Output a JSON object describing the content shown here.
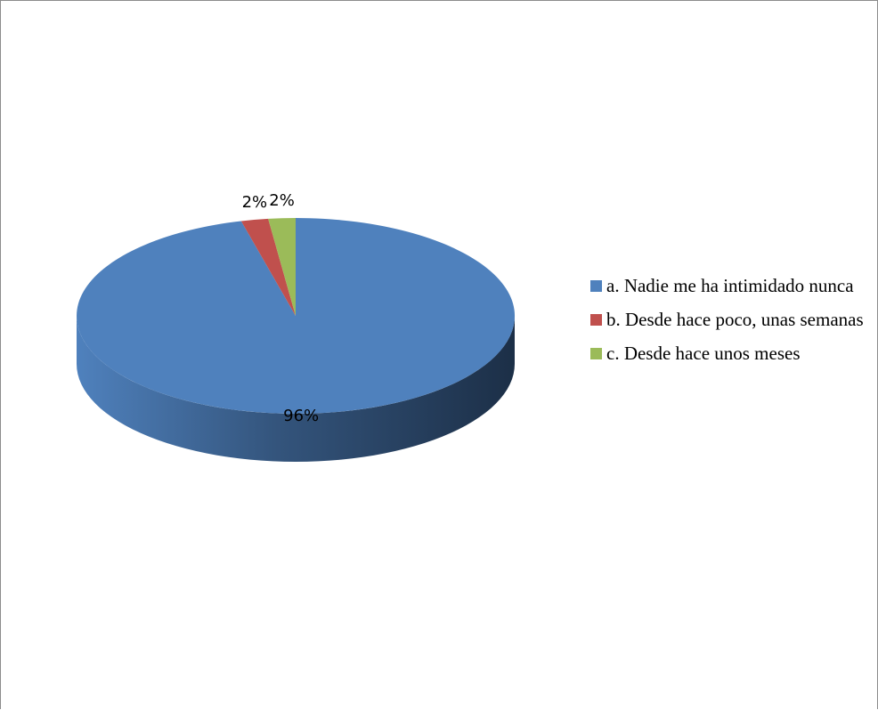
{
  "chart_data": {
    "type": "pie",
    "title": "",
    "categories": [
      "a. Nadie me ha intimidado nunca",
      "b. Desde hace poco, unas semanas",
      "c. Desde hace unos meses"
    ],
    "values": [
      96,
      2,
      2
    ],
    "data_labels": [
      "96%",
      "2%",
      "2%"
    ],
    "colors": [
      "#4f81bd",
      "#c0504d",
      "#9bbb59"
    ],
    "legend_placement": "right",
    "style": "3d-pie"
  }
}
